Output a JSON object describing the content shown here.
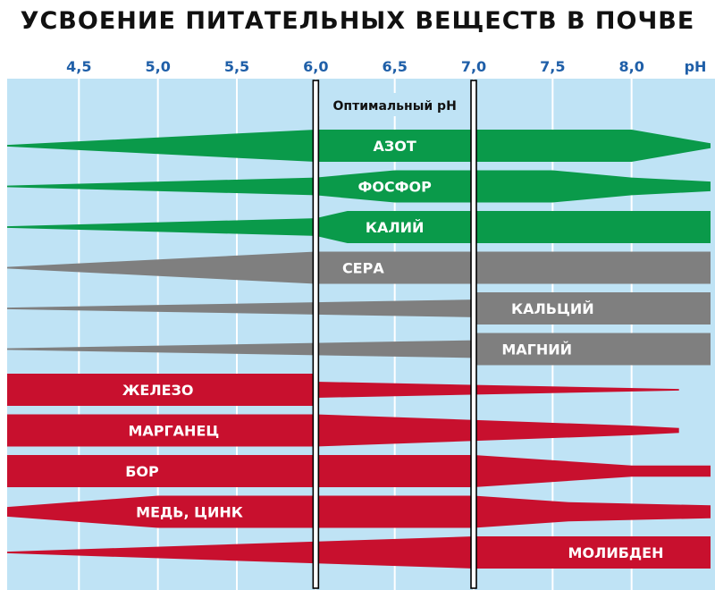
{
  "chart_data": {
    "type": "area",
    "title": "УСВОЕНИЕ  ПИТАТЕЛЬНЫХ ВЕЩЕСТВ В ПОЧВЕ",
    "x_unit": "pH",
    "x_ticks": [
      "4,5",
      "5,0",
      "5,5",
      "6,0",
      "6,5",
      "7,0",
      "7,5",
      "8,0"
    ],
    "x_tick_values": [
      4.5,
      5.0,
      5.5,
      6.0,
      6.5,
      7.0,
      7.5,
      8.0
    ],
    "xlim": [
      4.0,
      8.5
    ],
    "optimal_range": {
      "label": "Оптимальный pH",
      "from": 6.0,
      "to": 7.0
    },
    "grid": true,
    "series": [
      {
        "name": "АЗОТ",
        "color": "#0a9a4a",
        "label_at": 6.5,
        "profile": [
          [
            4.0,
            0.05
          ],
          [
            6.0,
            1.0
          ],
          [
            8.0,
            1.0
          ],
          [
            8.5,
            0.15
          ]
        ]
      },
      {
        "name": "ФОСФОР",
        "color": "#0a9a4a",
        "label_at": 6.5,
        "profile": [
          [
            4.0,
            0.05
          ],
          [
            6.0,
            0.55
          ],
          [
            6.5,
            1.0
          ],
          [
            7.5,
            1.0
          ],
          [
            8.0,
            0.55
          ],
          [
            8.5,
            0.3
          ]
        ]
      },
      {
        "name": "КАЛИЙ",
        "color": "#0a9a4a",
        "label_at": 6.5,
        "profile": [
          [
            4.0,
            0.05
          ],
          [
            6.0,
            0.55
          ],
          [
            6.2,
            1.0
          ],
          [
            8.5,
            1.0
          ]
        ]
      },
      {
        "name": "СЕРА",
        "color": "#7f7f7f",
        "label_at": 6.3,
        "profile": [
          [
            4.0,
            0.05
          ],
          [
            6.0,
            1.0
          ],
          [
            8.5,
            1.0
          ]
        ]
      },
      {
        "name": "КАЛЬЦИЙ",
        "color": "#7f7f7f",
        "label_at": 7.5,
        "profile": [
          [
            4.0,
            0.05
          ],
          [
            7.0,
            0.55
          ],
          [
            7.0,
            1.0
          ],
          [
            8.5,
            1.0
          ]
        ]
      },
      {
        "name": "МАГНИЙ",
        "color": "#7f7f7f",
        "label_at": 7.4,
        "profile": [
          [
            4.0,
            0.05
          ],
          [
            7.0,
            0.55
          ],
          [
            7.0,
            1.0
          ],
          [
            8.5,
            1.0
          ]
        ]
      },
      {
        "name": "ЖЕЛЕЗО",
        "color": "#c8102e",
        "label_at": 5.0,
        "profile": [
          [
            4.0,
            1.0
          ],
          [
            6.0,
            1.0
          ],
          [
            6.0,
            0.5
          ],
          [
            8.3,
            0.05
          ]
        ]
      },
      {
        "name": "МАРГАНЕЦ",
        "color": "#c8102e",
        "label_at": 5.1,
        "profile": [
          [
            4.0,
            1.0
          ],
          [
            6.0,
            1.0
          ],
          [
            8.0,
            0.3
          ],
          [
            8.3,
            0.15
          ]
        ]
      },
      {
        "name": "БОР",
        "color": "#c8102e",
        "label_at": 4.9,
        "profile": [
          [
            4.0,
            1.0
          ],
          [
            7.0,
            1.0
          ],
          [
            8.0,
            0.35
          ],
          [
            8.5,
            0.35
          ]
        ]
      },
      {
        "name": "МЕДЬ, ЦИНК",
        "color": "#c8102e",
        "label_at": 5.2,
        "profile": [
          [
            4.0,
            0.3
          ],
          [
            5.0,
            1.0
          ],
          [
            7.0,
            1.0
          ],
          [
            7.6,
            0.6
          ],
          [
            8.5,
            0.4
          ]
        ]
      },
      {
        "name": "МОЛИБДЕН",
        "color": "#c8102e",
        "label_at": 7.9,
        "profile": [
          [
            4.0,
            0.05
          ],
          [
            7.0,
            1.0
          ],
          [
            8.5,
            1.0
          ]
        ]
      }
    ]
  }
}
